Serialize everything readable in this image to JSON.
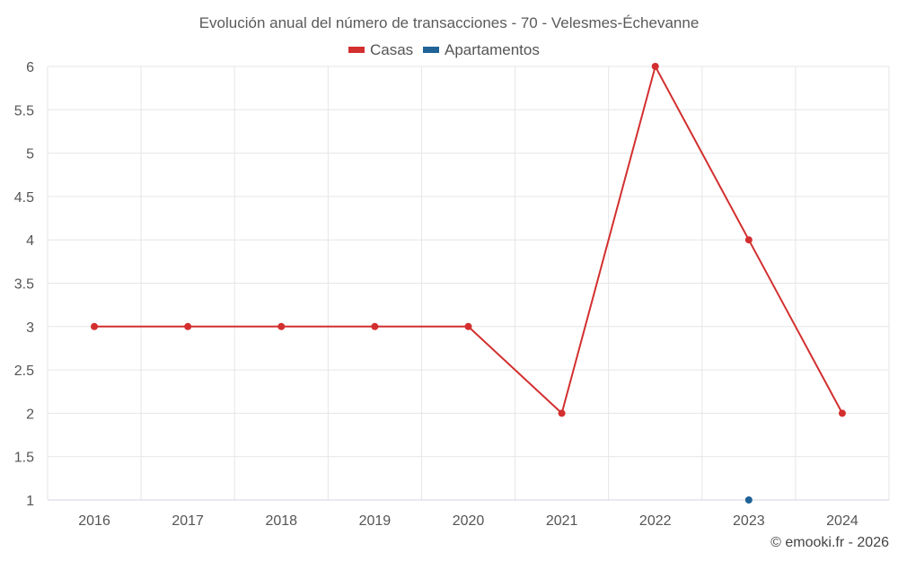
{
  "chart_data": {
    "type": "line",
    "title": "Evolución anual del número de transacciones - 70 - Velesmes-Échevanne",
    "xlabel": "",
    "ylabel": "",
    "categories": [
      "2016",
      "2017",
      "2018",
      "2019",
      "2020",
      "2021",
      "2022",
      "2023",
      "2024"
    ],
    "ylim": [
      1,
      6
    ],
    "yticks": [
      "1",
      "1.5",
      "2",
      "2.5",
      "3",
      "3.5",
      "4",
      "4.5",
      "5",
      "5.5",
      "6"
    ],
    "grid": true,
    "legend_position": "top-center",
    "series": [
      {
        "name": "Casas",
        "color": "#d32f2f",
        "values": [
          3,
          3,
          3,
          3,
          3,
          2,
          6,
          4,
          2
        ]
      },
      {
        "name": "Apartamentos",
        "color": "#1f6397",
        "values": [
          null,
          null,
          null,
          null,
          null,
          null,
          null,
          1,
          null
        ]
      }
    ]
  },
  "credit": "© emooki.fr - 2026"
}
